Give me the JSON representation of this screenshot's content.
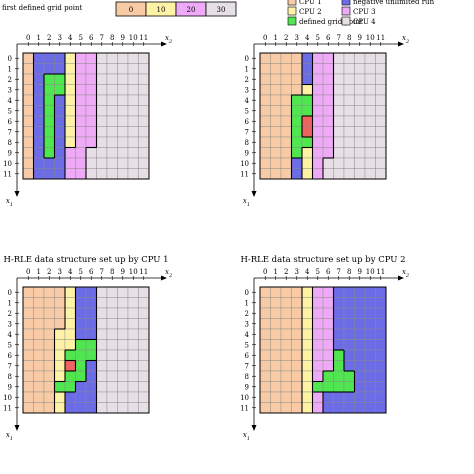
{
  "legend": {
    "first_defined_label": "first defined grid point",
    "offsets": [
      "0",
      "10",
      "20",
      "30"
    ],
    "offset_colors": [
      "#f8cba6",
      "#fdf2a6",
      "#eeaaf6",
      "#e6e0e6"
    ],
    "items": [
      {
        "label": "CPU 1",
        "color": "#f8cba6"
      },
      {
        "label": "negative unlimited run",
        "color": "#6c6ce6"
      },
      {
        "label": "CPU 2",
        "color": "#fdf2a6"
      },
      {
        "label": "CPU 3",
        "color": "#eeaaf6"
      },
      {
        "label": "defined grid point",
        "color": "#50e650"
      },
      {
        "label": "CPU 4",
        "color": "#e6e0e6"
      }
    ]
  },
  "colors": {
    "O": "#f8cba6",
    "Y": "#fdf2a6",
    "M": "#eeaaf6",
    "G": "#e6e0e6",
    "B": "#6c6ce6",
    "N": "#50e650",
    "R": "#ee6262"
  },
  "axes": {
    "x_label": "x2",
    "y_label": "x1",
    "x_ticks": [
      "0",
      "1",
      "2",
      "3",
      "4",
      "5",
      "6",
      "7",
      "8",
      "9",
      "10",
      "11"
    ],
    "y_ticks": [
      "0",
      "1",
      "2",
      "3",
      "4",
      "5",
      "6",
      "7",
      "8",
      "9",
      "10",
      "11"
    ]
  },
  "panels": [
    {
      "title": "",
      "grid": [
        "OBBBYMMGGGGG",
        "OBBBYMMGGGGG",
        "OBNNYMMGGGGG",
        "OBNNYMMGGGGG",
        "OBNBYMMGGGGG",
        "OBNBYMMGGGGG",
        "OBNBYMMGGGGG",
        "OBNBYMMGGGGG",
        "OBNBYMMGGGGG",
        "OBNBMMGGGGGG",
        "OBBBMMGGGGGG",
        "OBBBMMGGGGGG"
      ]
    },
    {
      "title": "",
      "grid": [
        "OOOOBMMGGGGG",
        "OOOOBMMGGGGG",
        "OOOOBMMGGGGG",
        "OOOOYMMGGGGG",
        "OOONNMMGGGGG",
        "OOONNMMGGGGG",
        "OOONRMMGGGGG",
        "OOONRMMGGGGG",
        "OOONNMMGGGGG",
        "OOONYMMGGGGG",
        "OOOBYMGGGGGG",
        "OOOBYMGGGGGG"
      ]
    },
    {
      "title": "H-RLE data structure set up by CPU 1",
      "grid": [
        "OOOOYBBGGGGG",
        "OOOOYBBGGGGG",
        "OOOOYBBGGGGG",
        "OOOOYBBGGGGG",
        "OOOYYBBGGGGG",
        "OOOYYNNGGGGG",
        "OOOYNNNGGGGG",
        "OOOYRNBGGGGG",
        "OOOYNNBGGGGG",
        "OOONNBBGGGGG",
        "OOOYBBBGGGGG",
        "OOOYBBBGGGGG"
      ]
    },
    {
      "title": "H-RLE data structure set up by CPU 2",
      "grid": [
        "OOOOYMMBBBBB",
        "OOOOYMMBBBBB",
        "OOOOYMMBBBBB",
        "OOOOYMMBBBBB",
        "OOOOYMMBBBBB",
        "OOOOYMMBBBBB",
        "OOOOYMMNBBBB",
        "OOOOYMMNBBBB",
        "OOOOYMNNNBBB",
        "OOOOYNNNNBBB",
        "OOOOYMBBBBBB",
        "OOOOYMBBBBBB"
      ]
    }
  ]
}
